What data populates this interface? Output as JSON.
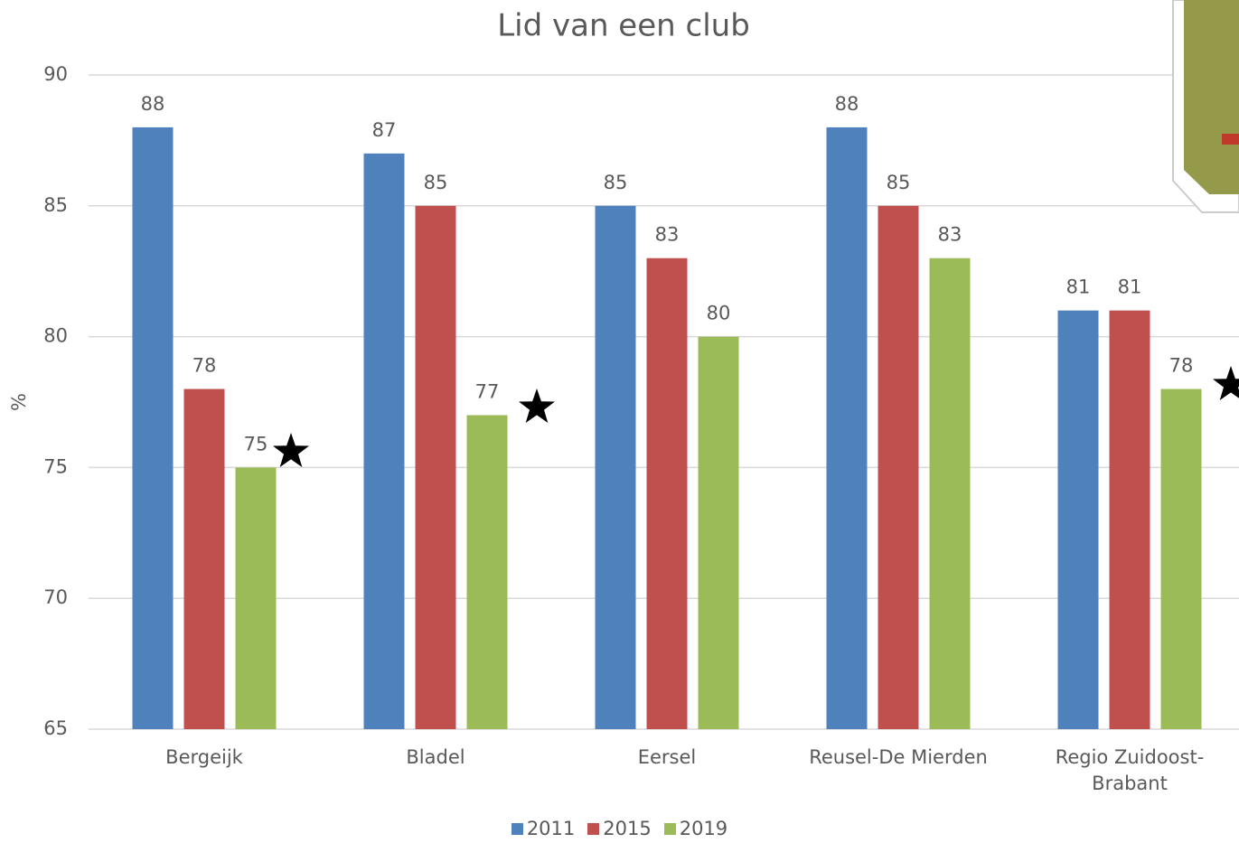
{
  "chart_data": {
    "type": "bar",
    "title": "Lid van een club",
    "y_label": "%",
    "categories": [
      "Bergeijk",
      "Bladel",
      "Eersel",
      "Reusel-De Mierden",
      "Regio Zuidoost-Brabant"
    ],
    "series": [
      {
        "name": "2011",
        "color": "#4f81bd",
        "values": [
          88,
          87,
          85,
          88,
          81
        ]
      },
      {
        "name": "2015",
        "color": "#c0504d",
        "values": [
          78,
          85,
          83,
          85,
          81
        ]
      },
      {
        "name": "2019",
        "color": "#9bbb59",
        "values": [
          75,
          77,
          80,
          83,
          78
        ]
      }
    ],
    "ylim": [
      65,
      90
    ],
    "yticks": [
      65,
      70,
      75,
      80,
      85,
      90
    ],
    "grid": true,
    "legend": "bottom"
  }
}
